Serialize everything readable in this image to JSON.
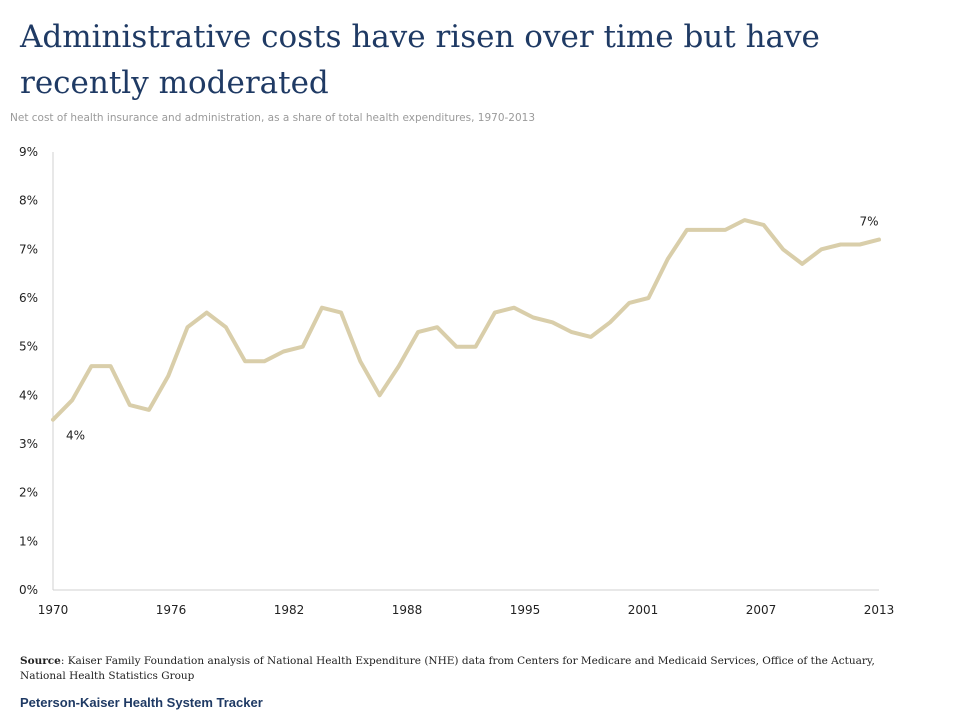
{
  "title": "Administrative costs have risen over time but have recently moderated",
  "subtitle": "Net cost of health insurance and administration, as a share of total health expenditures, 1970-2013",
  "source": {
    "label": "Source",
    "text": ": Kaiser Family Foundation analysis of National Health Expenditure (NHE) data from Centers for Medicare and Medicaid Services, Office of the Actuary, National Health Statistics Group"
  },
  "footer": "Peterson-Kaiser Health System Tracker",
  "colors": {
    "line": "#d9ceaa",
    "axis": "#d0d0d0",
    "title": "#1f3a64"
  },
  "chart_data": {
    "type": "line",
    "title": "",
    "xlabel": "",
    "ylabel": "",
    "xlim": [
      1970,
      2013
    ],
    "ylim": [
      0,
      9
    ],
    "y_ticks": [
      0,
      1,
      2,
      3,
      4,
      5,
      6,
      7,
      8,
      9
    ],
    "y_tick_labels": [
      "0%",
      "1%",
      "2%",
      "3%",
      "4%",
      "5%",
      "6%",
      "7%",
      "8%",
      "9%"
    ],
    "x_tick_labels": [
      "1970",
      "1976",
      "1982",
      "1988",
      "1995",
      "2001",
      "2007",
      "2013"
    ],
    "grid": false,
    "legend": "none",
    "series": [
      {
        "x": [
          1970,
          1971,
          1972,
          1973,
          1974,
          1975,
          1976,
          1977,
          1978,
          1979,
          1980,
          1981,
          1982,
          1983,
          1984,
          1985,
          1986,
          1987,
          1988,
          1989,
          1990,
          1991,
          1992,
          1993,
          1994,
          1995,
          1996,
          1997,
          1998,
          1999,
          2000,
          2001,
          2002,
          2003,
          2004,
          2005,
          2006,
          2007,
          2008,
          2009,
          2010,
          2011,
          2012,
          2013
        ],
        "values": [
          3.5,
          3.9,
          4.6,
          4.6,
          3.8,
          3.7,
          4.4,
          5.4,
          5.7,
          5.4,
          4.7,
          4.7,
          4.9,
          5.0,
          5.8,
          5.7,
          4.7,
          4.0,
          4.6,
          5.3,
          5.4,
          5.0,
          5.0,
          5.7,
          5.8,
          5.6,
          5.5,
          5.3,
          5.2,
          5.5,
          5.9,
          6.0,
          6.8,
          7.4,
          7.4,
          7.4,
          7.6,
          7.5,
          7.0,
          6.7,
          7.0,
          7.1,
          7.1,
          7.2
        ]
      }
    ],
    "annotations": [
      {
        "x": 1970,
        "text": "4%"
      },
      {
        "x": 2013,
        "text": "7%"
      }
    ]
  }
}
